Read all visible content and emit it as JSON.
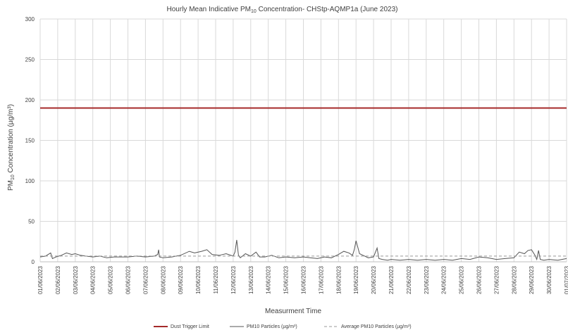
{
  "chart_data": {
    "type": "line",
    "title": {
      "prefix": "Hourly Mean Indicative PM",
      "subscript": "10",
      "suffix": " Concentration- CHStp-AQMP1a (June 2023)"
    },
    "xlabel": "Measurment Time",
    "ylabel": {
      "prefix": "PM",
      "subscript": "10",
      "suffix": " Concentration (µg/m³)"
    },
    "ylim": [
      0,
      300
    ],
    "yticks": [
      0,
      50,
      100,
      150,
      200,
      250,
      300
    ],
    "xlim": [
      1,
      31
    ],
    "x_tick_labels": [
      "01/06/2023",
      "02/06/2023",
      "03/06/2023",
      "04/06/2023",
      "05/06/2023",
      "06/06/2023",
      "07/06/2023",
      "08/06/2023",
      "09/06/2023",
      "10/06/2023",
      "11/06/2023",
      "12/06/2023",
      "13/06/2023",
      "14/06/2023",
      "15/06/2023",
      "16/06/2023",
      "17/06/2023",
      "18/06/2023",
      "19/06/2023",
      "20/06/2023",
      "21/06/2023",
      "22/06/2023",
      "23/06/2023",
      "24/06/2023",
      "25/06/2023",
      "26/06/2023",
      "27/06/2023",
      "28/06/2023",
      "29/06/2023",
      "30/06/2023",
      "01/07/2023"
    ],
    "grid": true,
    "legend_position": "bottom",
    "series": [
      {
        "name": "Dust Trigger Limit",
        "color": "#a52a2a",
        "style": "solid",
        "x": [
          1,
          31
        ],
        "values": [
          190,
          190
        ]
      },
      {
        "name": "PM10 Particles (µg/m³)",
        "color": "#555555",
        "style": "solid",
        "x": [
          1,
          1.3,
          1.6,
          1.7,
          1.9,
          2.2,
          2.5,
          2.8,
          3.0,
          3.3,
          3.6,
          4.0,
          4.4,
          4.8,
          5.2,
          5.6,
          6.0,
          6.5,
          7.0,
          7.5,
          7.7,
          7.75,
          7.8,
          8.0,
          8.5,
          9.0,
          9.5,
          9.8,
          10.2,
          10.5,
          10.8,
          11.2,
          11.6,
          12.0,
          12.1,
          12.2,
          12.3,
          12.4,
          12.7,
          13.0,
          13.3,
          13.5,
          13.8,
          14.2,
          14.6,
          15.0,
          15.5,
          16.0,
          16.4,
          16.8,
          17.2,
          17.6,
          18.0,
          18.3,
          18.6,
          18.8,
          18.9,
          19.0,
          19.1,
          19.2,
          19.4,
          19.7,
          20.0,
          20.2,
          20.3,
          20.5,
          20.8,
          21.0,
          21.5,
          22.0,
          22.5,
          23.0,
          23.5,
          24.0,
          24.5,
          25.0,
          25.5,
          26.0,
          26.5,
          27.0,
          27.5,
          28.0,
          28.3,
          28.6,
          28.8,
          29.0,
          29.2,
          29.3,
          29.4,
          29.5,
          29.7,
          30.0,
          30.5,
          31.0
        ],
        "values": [
          6,
          7,
          11,
          4,
          6,
          8,
          11,
          9,
          10,
          8,
          7,
          6,
          7,
          5,
          6,
          6,
          6,
          7,
          6,
          7,
          9,
          15,
          6,
          5,
          6,
          8,
          13,
          11,
          13,
          15,
          9,
          8,
          10,
          7,
          12,
          27,
          8,
          5,
          10,
          7,
          12,
          6,
          6,
          8,
          5,
          6,
          5,
          6,
          5,
          4,
          6,
          5,
          9,
          13,
          11,
          8,
          15,
          26,
          18,
          10,
          8,
          5,
          6,
          17,
          4,
          3,
          2,
          3,
          2,
          3,
          2,
          3,
          2,
          3,
          2,
          4,
          3,
          6,
          5,
          3,
          4,
          5,
          12,
          10,
          14,
          15,
          8,
          3,
          14,
          3,
          2,
          3,
          2,
          4
        ]
      },
      {
        "name": "Average PM10 Particles (µg/m³)",
        "color": "#999999",
        "style": "dashed",
        "x": [
          1,
          31
        ],
        "values": [
          7,
          7
        ]
      }
    ]
  }
}
